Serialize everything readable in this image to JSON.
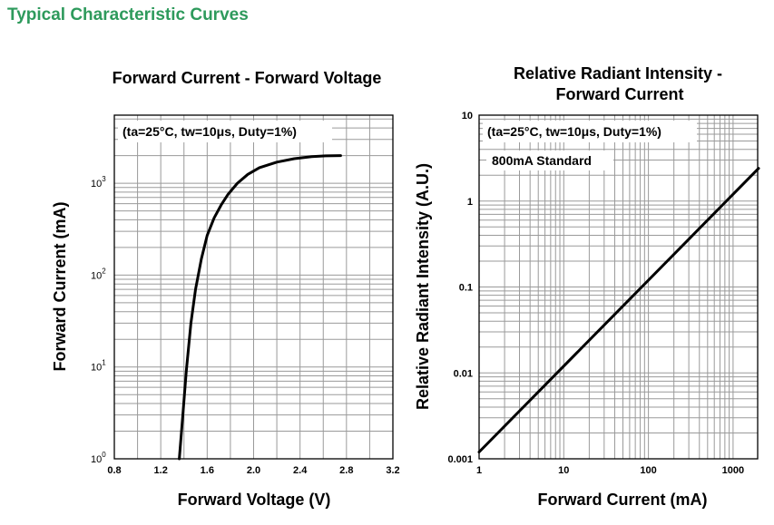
{
  "page": {
    "section_title": "Typical Characteristic Curves"
  },
  "colors": {
    "section_title": "#2e9a5c",
    "curve": "#000000",
    "grid": "#9a9a9a"
  },
  "chart_data": [
    {
      "type": "line",
      "title": "Forward Current - Forward Voltage",
      "xlabel": "Forward Voltage (V)",
      "ylabel": "Forward Current (mA)",
      "annotation": "(ta=25°C, tw=10μs, Duty=1%)",
      "xlim": [
        0.8,
        3.2
      ],
      "ylim": [
        1,
        5000
      ],
      "yscale": "log",
      "grid": true,
      "x_ticks": [
        "0.8",
        "1.2",
        "1.6",
        "2.0",
        "2.4",
        "2.8",
        "3.2"
      ],
      "y_ticks": [
        {
          "base": "10",
          "exp": "0"
        },
        {
          "base": "10",
          "exp": "1"
        },
        {
          "base": "10",
          "exp": "2"
        },
        {
          "base": "10",
          "exp": "3"
        }
      ],
      "series": [
        {
          "x": [
            1.36,
            1.39,
            1.42,
            1.46,
            1.5,
            1.55,
            1.6,
            1.66,
            1.72,
            1.78,
            1.86,
            1.95,
            2.05,
            2.2,
            2.35,
            2.5,
            2.62,
            2.75
          ],
          "y": [
            1,
            3,
            9,
            30,
            70,
            150,
            270,
            420,
            580,
            760,
            1000,
            1250,
            1480,
            1700,
            1850,
            1950,
            1985,
            2000
          ]
        }
      ]
    },
    {
      "type": "line",
      "title": "Relative Radiant Intensity - Forward Current",
      "title_lines": [
        "Relative Radiant Intensity -",
        "Forward Current"
      ],
      "xlabel": "Forward Current (mA)",
      "ylabel": "Relative Radiant Intensity (A.U.)",
      "annotations": [
        "(ta=25°C, tw=10μs, Duty=1%)",
        "800mA Standard"
      ],
      "xlim": [
        1,
        2000
      ],
      "ylim": [
        0.001,
        10
      ],
      "xscale": "log",
      "yscale": "log",
      "grid": true,
      "x_ticks": [
        "1",
        "10",
        "100",
        "1000"
      ],
      "y_ticks": [
        "0.001",
        "0.01",
        "0.1",
        "1",
        "10"
      ],
      "series": [
        {
          "x": [
            1,
            2000
          ],
          "y": [
            0.0012,
            2.4
          ]
        }
      ]
    }
  ]
}
